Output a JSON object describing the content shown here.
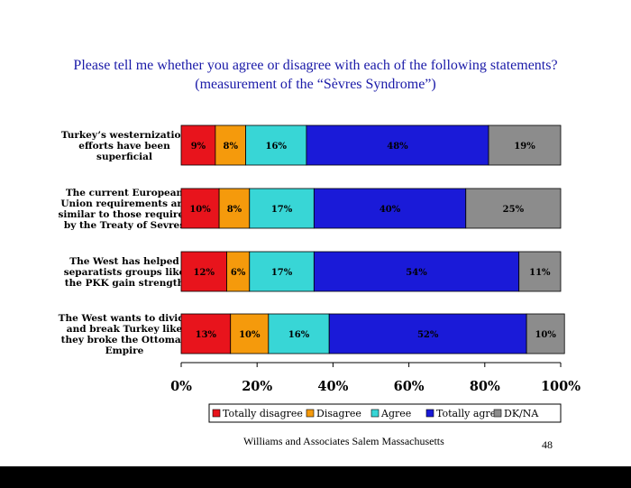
{
  "slide": {
    "title": "Please tell me whether you agree or disagree with each of the following statements? (measurement of the “Sèvres  Syndrome”)",
    "footer": "Williams and Associates Salem Massachusetts",
    "page_number": "48"
  },
  "chart_data": {
    "type": "bar",
    "orientation": "horizontal",
    "stacked": "percent",
    "title": "",
    "xlabel": "",
    "ylabel": "",
    "xlim": [
      0,
      100
    ],
    "x_ticks": [
      "0%",
      "20%",
      "40%",
      "60%",
      "80%",
      "100%"
    ],
    "legend_position": "bottom",
    "grid": false,
    "categories": [
      [
        "Turkey’s westernization",
        "efforts have been",
        "superficial"
      ],
      [
        "The current European",
        "Union requirements are",
        "similar to those required",
        "by the Treaty of Sevres"
      ],
      [
        "The West has helped",
        "separatists groups like",
        "the PKK gain strength"
      ],
      [
        "The West wants to divide",
        "and break Turkey like",
        "they broke the Ottoman",
        "Empire"
      ]
    ],
    "series": [
      {
        "name": "Totally disagree",
        "color": "#e8141c",
        "values": [
          9,
          10,
          12,
          13
        ],
        "labels": [
          "9%",
          "10%",
          "12%",
          "13%"
        ]
      },
      {
        "name": "Disagree",
        "color": "#f59a0c",
        "values": [
          8,
          8,
          6,
          10
        ],
        "labels": [
          "8%",
          "8%",
          "6%",
          "10%"
        ]
      },
      {
        "name": "Agree",
        "color": "#38d6d6",
        "values": [
          16,
          17,
          17,
          16
        ],
        "labels": [
          "16%",
          "17%",
          "17%",
          "16%"
        ]
      },
      {
        "name": "Totally agree",
        "color": "#1a1ad8",
        "values": [
          48,
          40,
          54,
          52
        ],
        "labels": [
          "48%",
          "40%",
          "54%",
          "52%"
        ]
      },
      {
        "name": "DK/NA",
        "color": "#8c8c8c",
        "values": [
          19,
          25,
          11,
          10
        ],
        "labels": [
          "19%",
          "25%",
          "11%",
          "10%"
        ]
      }
    ]
  }
}
